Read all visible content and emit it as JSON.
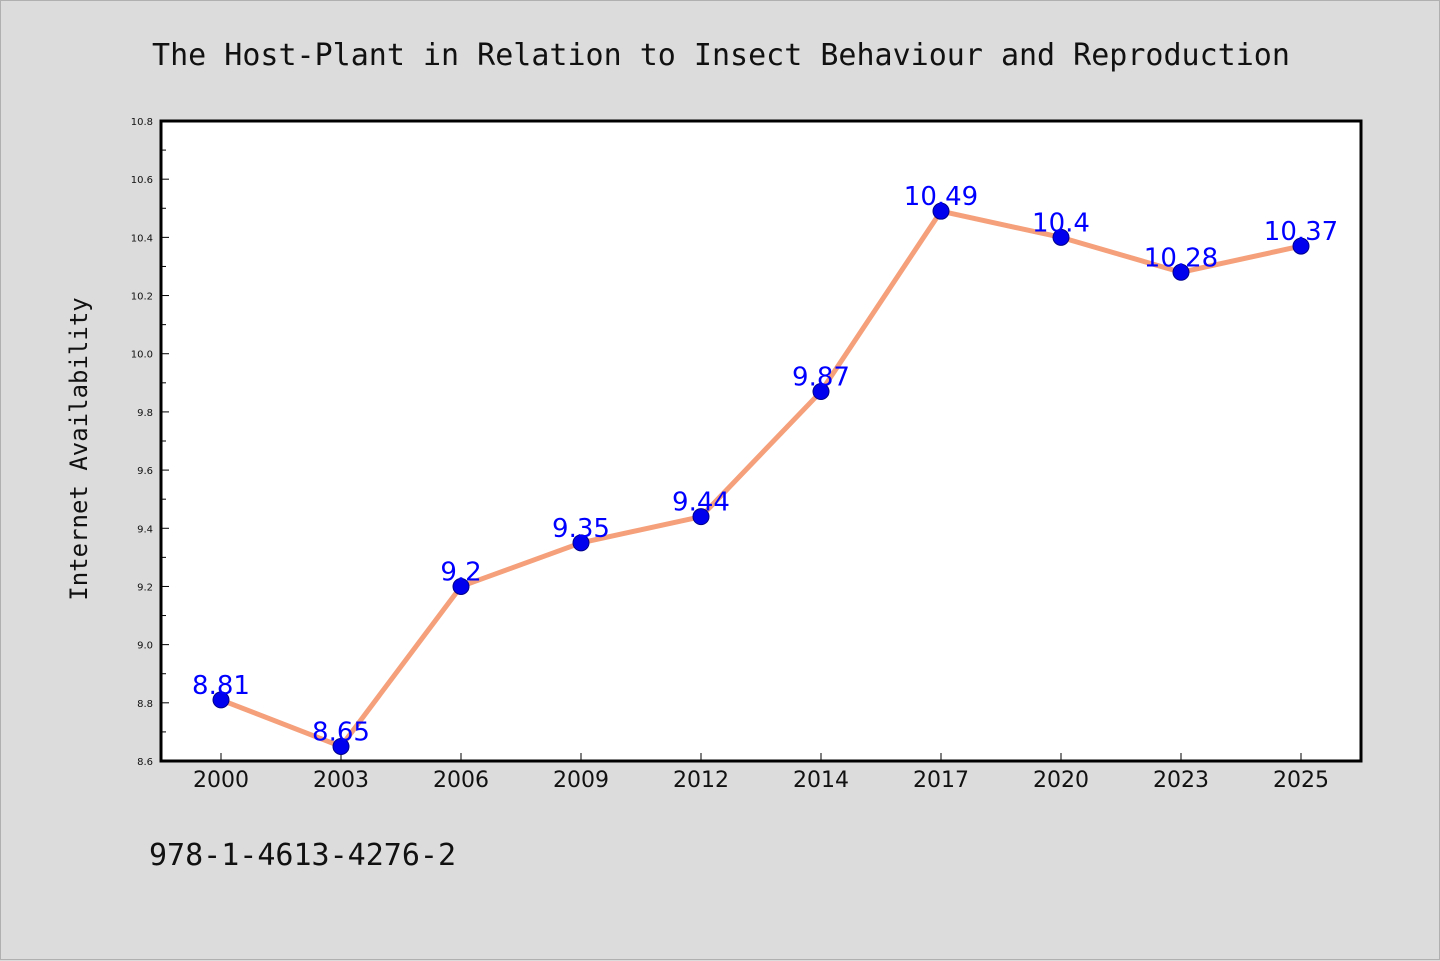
{
  "chart_data": {
    "type": "line",
    "title": "The Host-Plant in Relation to Insect Behaviour and Reproduction",
    "xlabel": "",
    "ylabel": "Internet Availability",
    "categories": [
      "2000",
      "2003",
      "2006",
      "2009",
      "2012",
      "2014",
      "2017",
      "2020",
      "2023",
      "2025"
    ],
    "series": [
      {
        "values": [
          8.81,
          8.65,
          9.2,
          9.35,
          9.44,
          9.87,
          10.49,
          10.4,
          10.28,
          10.37
        ]
      }
    ],
    "data_labels": [
      "8.81",
      "8.65",
      "9.2",
      "9.35",
      "9.44",
      "9.87",
      "10.49",
      "10.4",
      "10.28",
      "10.37"
    ],
    "ylim": [
      8.6,
      10.8
    ],
    "yticks": [
      "8.6",
      "8.8",
      "9.0",
      "9.2",
      "9.4",
      "9.6",
      "9.8",
      "10.0",
      "10.2",
      "10.4",
      "10.6",
      "10.8"
    ],
    "grid": false,
    "legend": "none",
    "colors": {
      "line": "#f5a07a",
      "marker": "#0000ee",
      "label": "#0000ff",
      "background": "#dcdcdc",
      "plot_background": "#ffffff"
    }
  },
  "footer": {
    "isbn": "978-1-4613-4276-2"
  }
}
